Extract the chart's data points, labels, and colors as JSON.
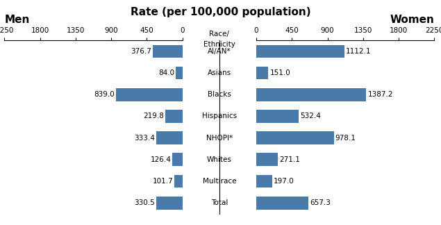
{
  "categories": [
    "AI/AN*",
    "Asians",
    "Blacks",
    "Hispanics",
    "NHOPI*",
    "Whites",
    "Multirace",
    "Total"
  ],
  "men_values": [
    376.7,
    84.0,
    839.0,
    219.8,
    333.4,
    126.4,
    101.7,
    330.5
  ],
  "women_values": [
    1112.1,
    151.0,
    1387.2,
    532.4,
    978.1,
    271.1,
    197.0,
    657.3
  ],
  "bar_color": "#4a7aaa",
  "title": "Rate (per 100,000 population)",
  "men_label": "Men",
  "women_label": "Women",
  "race_label_line1": "Race/",
  "race_label_line2": "Ethnicity",
  "xlim": 2250,
  "xticks": [
    0,
    450,
    900,
    1350,
    1800,
    2250
  ],
  "tick_fontsize": 7.5,
  "label_fontsize": 7.5,
  "header_fontsize": 9,
  "title_fontsize": 11,
  "bar_height": 0.6
}
